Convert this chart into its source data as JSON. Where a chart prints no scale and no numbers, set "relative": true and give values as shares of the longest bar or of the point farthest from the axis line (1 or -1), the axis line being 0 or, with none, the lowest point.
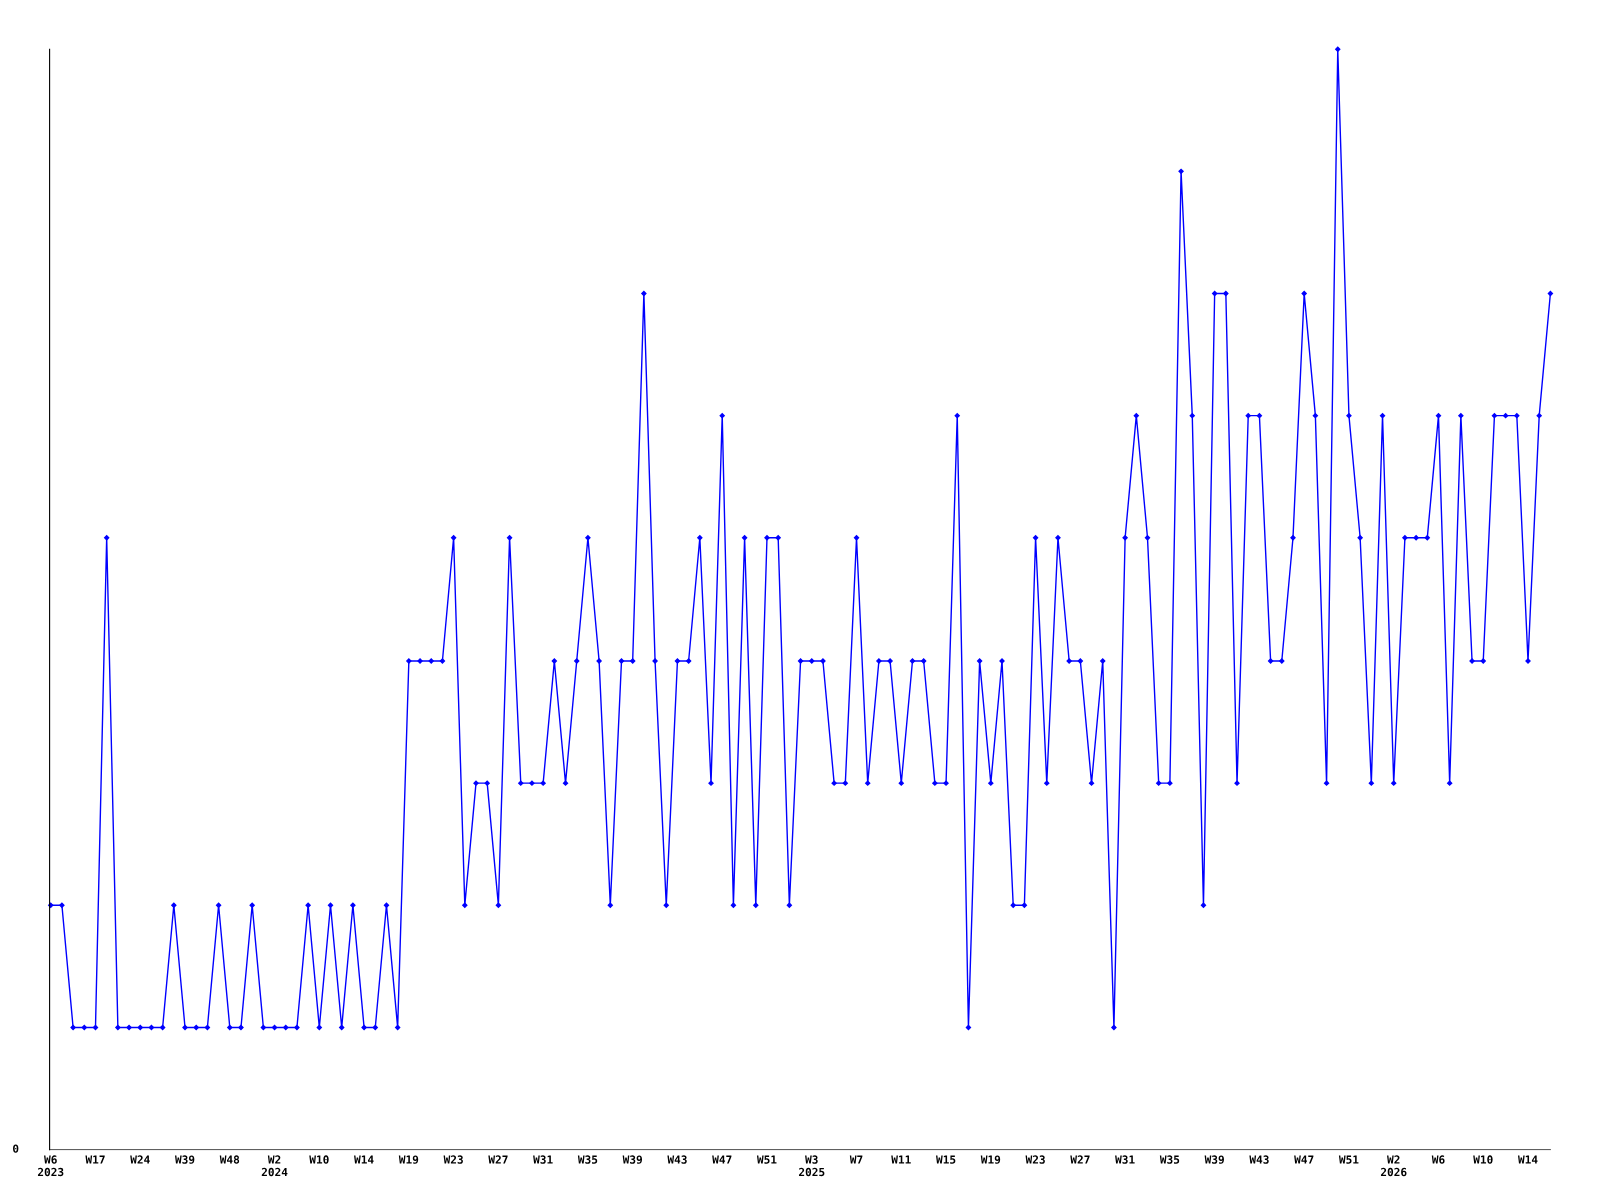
{
  "chart_data": {
    "type": "line",
    "relative": true,
    "marker": "diamond",
    "line_style": "solid",
    "grid": false,
    "annotations": [
      "0"
    ],
    "categories": [
      "W6\n2023",
      null,
      null,
      null,
      "W17",
      null,
      null,
      null,
      "W24",
      null,
      null,
      null,
      "W39",
      null,
      null,
      null,
      "W48",
      null,
      null,
      null,
      "W2\n2024",
      null,
      null,
      null,
      "W10",
      null,
      null,
      null,
      "W14",
      null,
      null,
      null,
      "W19",
      null,
      null,
      null,
      "W23",
      null,
      null,
      null,
      "W27",
      null,
      null,
      null,
      "W31",
      null,
      null,
      null,
      "W35",
      null,
      null,
      null,
      "W39",
      null,
      null,
      null,
      "W43",
      null,
      null,
      null,
      "W47",
      null,
      null,
      null,
      "W51",
      null,
      null,
      null,
      "W3\n2025",
      null,
      null,
      null,
      "W7",
      null,
      null,
      null,
      "W11",
      null,
      null,
      null,
      "W15",
      null,
      null,
      null,
      "W19",
      null,
      null,
      null,
      "W23",
      null,
      null,
      null,
      "W27",
      null,
      null,
      null,
      "W31",
      null,
      null,
      null,
      "W35",
      null,
      null,
      null,
      "W39",
      null,
      null,
      null,
      "W43",
      null,
      null,
      null,
      "W47",
      null,
      null,
      null,
      "W51",
      null,
      null,
      null,
      "W2\n2026",
      null,
      null,
      null,
      "W6",
      null,
      null,
      null,
      "W10",
      null,
      null,
      null,
      "W14",
      null,
      null
    ],
    "series": [
      {
        "color": "#0000ff",
        "values": [
          0.222,
          0.222,
          0.111,
          0.111,
          0.111,
          0.556,
          0.111,
          0.111,
          0.111,
          0.111,
          0.111,
          0.222,
          0.111,
          0.111,
          0.111,
          0.222,
          0.111,
          0.111,
          0.222,
          0.111,
          0.111,
          0.111,
          0.111,
          0.222,
          0.111,
          0.222,
          0.111,
          0.222,
          0.111,
          0.111,
          0.222,
          0.111,
          0.444,
          0.444,
          0.444,
          0.444,
          0.556,
          0.222,
          0.333,
          0.333,
          0.222,
          0.556,
          0.333,
          0.333,
          0.333,
          0.444,
          0.333,
          0.444,
          0.556,
          0.444,
          0.222,
          0.444,
          0.444,
          0.778,
          0.444,
          0.222,
          0.444,
          0.444,
          0.556,
          0.333,
          0.667,
          0.222,
          0.556,
          0.222,
          0.556,
          0.556,
          0.222,
          0.444,
          0.444,
          0.444,
          0.333,
          0.333,
          0.556,
          0.333,
          0.444,
          0.444,
          0.333,
          0.444,
          0.444,
          0.333,
          0.333,
          0.667,
          0.111,
          0.444,
          0.333,
          0.444,
          0.222,
          0.222,
          0.556,
          0.333,
          0.556,
          0.444,
          0.444,
          0.333,
          0.444,
          0.111,
          0.556,
          0.667,
          0.556,
          0.333,
          0.333,
          0.889,
          0.667,
          0.222,
          0.778,
          0.778,
          0.333,
          0.667,
          0.667,
          0.444,
          0.444,
          0.556,
          0.778,
          0.667,
          0.333,
          1,
          0.667,
          0.556,
          0.333,
          0.667,
          0.333,
          0.556,
          0.556,
          0.556,
          0.667,
          0.333,
          0.667,
          0.444,
          0.444,
          0.667,
          0.667,
          0.667,
          0.444,
          0.667,
          0.778
        ]
      }
    ]
  }
}
